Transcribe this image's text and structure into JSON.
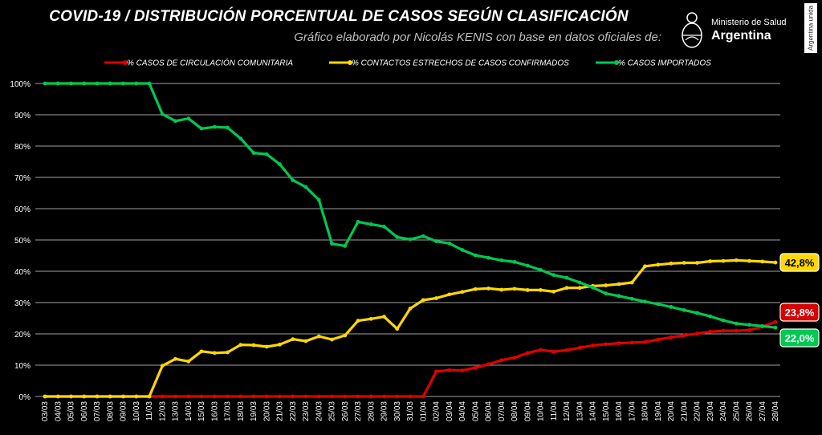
{
  "title": "COVID-19  /  DISTRIBUCIÓN PORCENTUAL DE CASOS SEGÚN CLASIFICACIÓN",
  "subtitle": "Gráfico elaborado por Nicolás KENIS con base en datos oficiales de:",
  "logo": {
    "ministry": "Ministerio de Salud",
    "country": "Argentina",
    "side_badge": "Argentina unida"
  },
  "chart_data": {
    "type": "line",
    "ylim": [
      0,
      100
    ],
    "y_ticks": [
      "0%",
      "10%",
      "20%",
      "30%",
      "40%",
      "50%",
      "60%",
      "70%",
      "80%",
      "90%",
      "100%"
    ],
    "grid": true,
    "legend": "top",
    "categories": [
      "03/03",
      "04/03",
      "05/03",
      "06/03",
      "07/03",
      "08/03",
      "09/03",
      "10/03",
      "11/03",
      "12/03",
      "13/03",
      "14/03",
      "15/03",
      "16/03",
      "17/03",
      "18/03",
      "19/03",
      "20/03",
      "21/03",
      "22/03",
      "23/03",
      "24/03",
      "25/03",
      "26/03",
      "27/03",
      "28/03",
      "29/03",
      "30/03",
      "31/03",
      "01/04",
      "02/04",
      "03/04",
      "04/04",
      "05/04",
      "06/04",
      "07/04",
      "08/04",
      "09/04",
      "10/04",
      "11/04",
      "12/04",
      "13/04",
      "14/04",
      "15/04",
      "16/04",
      "17/04",
      "18/04",
      "19/04",
      "20/04",
      "21/04",
      "22/04",
      "23/04",
      "24/04",
      "25/04",
      "26/04",
      "27/04",
      "28/04"
    ],
    "x_tick_labels": [
      "03/03",
      "05/03",
      "07/03",
      "09/03",
      "11/03",
      "13/03",
      "15/03",
      "17/03",
      "19/03",
      "21/03",
      "23/03",
      "25/03",
      "27/03",
      "29/03",
      "31/03",
      "02/04",
      "04/04",
      "06/04",
      "08/04",
      "10/04",
      "12/04",
      "14/04",
      "16/04",
      "18/04",
      "20/04",
      "22/04",
      "24/04",
      "26/04",
      "28/04"
    ],
    "x_tick_labels_odd": [
      "04/03",
      "06/03",
      "08/03",
      "10/03",
      "12/03",
      "14/03",
      "16/03",
      "18/03",
      "20/03",
      "22/03",
      "24/03",
      "26/03",
      "28/03",
      "30/03",
      "01/04",
      "03/04",
      "05/04",
      "07/04",
      "09/04",
      "11/04",
      "13/04",
      "15/04",
      "17/04",
      "19/04",
      "21/04",
      "23/04",
      "25/04",
      "27/04"
    ],
    "series": [
      {
        "name": "% CASOS DE CIRCULACIÓN COMUNITARIA",
        "color": "#e00000",
        "end_label": "23,8%",
        "values": [
          0,
          0,
          0,
          0,
          0,
          0,
          0,
          0,
          0,
          0,
          0,
          0,
          0,
          0,
          0,
          0,
          0,
          0,
          0,
          0,
          0,
          0,
          0,
          0,
          0,
          0,
          0,
          0,
          0,
          0,
          8,
          8.4,
          8.3,
          9.2,
          10.3,
          11.6,
          12.4,
          13.9,
          14.9,
          14.3,
          14.8,
          15.6,
          16.3,
          16.7,
          17,
          17.2,
          17.4,
          18.2,
          18.9,
          19.5,
          20.1,
          20.7,
          21,
          21,
          21.2,
          22.3,
          23.8
        ]
      },
      {
        "name": "% CONTACTOS ESTRECHOS DE CASOS CONFIRMADOS",
        "color": "#ffd800",
        "end_label": "42,8%",
        "values": [
          0,
          0,
          0,
          0,
          0,
          0,
          0,
          0,
          0,
          9.8,
          12,
          11.2,
          14.4,
          13.9,
          14.1,
          16.5,
          16.4,
          15.9,
          16.6,
          18.3,
          17.7,
          19.2,
          18.2,
          19.5,
          24.2,
          24.8,
          25.5,
          21.6,
          28.1,
          30.8,
          31.4,
          32.6,
          33.4,
          34.3,
          34.5,
          34.1,
          34.4,
          34,
          34,
          33.5,
          34.7,
          34.7,
          35.3,
          35.5,
          35.9,
          36.4,
          41.6,
          42.1,
          42.5,
          42.7,
          42.7,
          43.2,
          43.3,
          43.5,
          43.3,
          43.1,
          42.8
        ]
      },
      {
        "name": "% CASOS IMPORTADOS",
        "color": "#00c853",
        "end_label": "22,0%",
        "values": [
          100,
          100,
          100,
          100,
          100,
          100,
          100,
          100,
          100,
          90.2,
          88,
          88.8,
          85.6,
          86.1,
          85.9,
          82.4,
          77.8,
          77.4,
          74.2,
          69.1,
          66.9,
          62.8,
          48.8,
          48.1,
          55.8,
          55,
          54.3,
          50.9,
          50.2,
          51.2,
          49.6,
          48.9,
          46.8,
          45.1,
          44.3,
          43.5,
          43,
          41.8,
          40.4,
          38.8,
          37.9,
          36.4,
          34.8,
          32.9,
          32.1,
          31.2,
          30.3,
          29.5,
          28.6,
          27.6,
          26.7,
          25.6,
          24.3,
          23.3,
          22.9,
          22.5,
          22.0
        ]
      }
    ]
  }
}
